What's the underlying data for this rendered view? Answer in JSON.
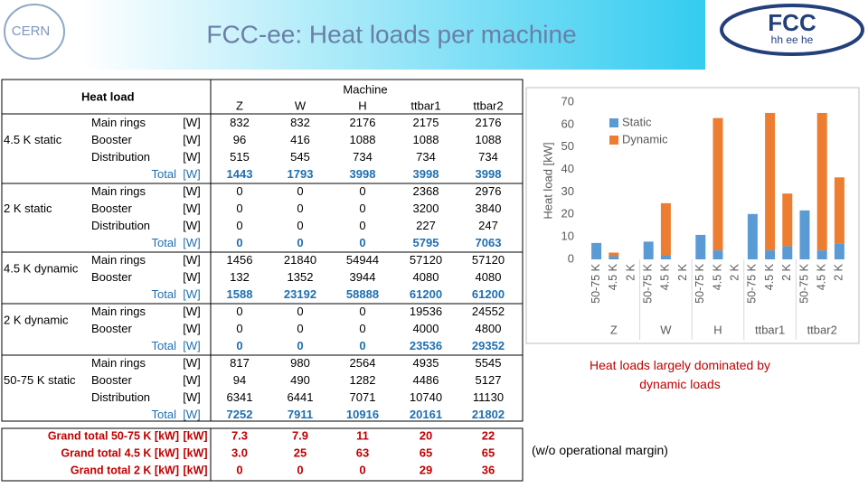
{
  "header": {
    "title": "FCC-ee: Heat loads per machine",
    "logo_left": "CERN",
    "logo_right": "FCC",
    "logo_right_sub": "hh ee he"
  },
  "table": {
    "corner": "Heat load",
    "group_header": "Machine",
    "columns": [
      "Z",
      "W",
      "H",
      "ttbar1",
      "ttbar2"
    ],
    "sections": [
      {
        "label": "4.5 K static",
        "rows": [
          {
            "item": "Main rings",
            "unit": "[W]",
            "values": [
              832,
              832,
              2176,
              2175,
              2176
            ]
          },
          {
            "item": "Booster",
            "unit": "[W]",
            "values": [
              96,
              416,
              1088,
              1088,
              1088
            ]
          },
          {
            "item": "Distribution",
            "unit": "[W]",
            "values": [
              515,
              545,
              734,
              734,
              734
            ]
          },
          {
            "item": "Total",
            "unit": "[W]",
            "values": [
              1443,
              1793,
              3998,
              3998,
              3998
            ]
          }
        ]
      },
      {
        "label": "2 K static",
        "rows": [
          {
            "item": "Main rings",
            "unit": "[W]",
            "values": [
              0,
              0,
              0,
              2368,
              2976
            ]
          },
          {
            "item": "Booster",
            "unit": "[W]",
            "values": [
              0,
              0,
              0,
              3200,
              3840
            ]
          },
          {
            "item": "Distribution",
            "unit": "[W]",
            "values": [
              0,
              0,
              0,
              227,
              247
            ]
          },
          {
            "item": "Total",
            "unit": "[W]",
            "values": [
              0,
              0,
              0,
              5795,
              7063
            ]
          }
        ]
      },
      {
        "label": "4.5 K dynamic",
        "rows": [
          {
            "item": "Main rings",
            "unit": "[W]",
            "values": [
              1456,
              21840,
              54944,
              57120,
              57120
            ]
          },
          {
            "item": "Booster",
            "unit": "[W]",
            "values": [
              132,
              1352,
              3944,
              4080,
              4080
            ]
          },
          {
            "item": "Total",
            "unit": "[W]",
            "values": [
              1588,
              23192,
              58888,
              61200,
              61200
            ]
          }
        ]
      },
      {
        "label": "2 K dynamic",
        "rows": [
          {
            "item": "Main rings",
            "unit": "[W]",
            "values": [
              0,
              0,
              0,
              19536,
              24552
            ]
          },
          {
            "item": "Booster",
            "unit": "[W]",
            "values": [
              0,
              0,
              0,
              4000,
              4800
            ]
          },
          {
            "item": "Total",
            "unit": "[W]",
            "values": [
              0,
              0,
              0,
              23536,
              29352
            ]
          }
        ]
      },
      {
        "label": "50-75 K static",
        "rows": [
          {
            "item": "Main rings",
            "unit": "[W]",
            "values": [
              817,
              980,
              2564,
              4935,
              5545
            ]
          },
          {
            "item": "Booster",
            "unit": "[W]",
            "values": [
              94,
              490,
              1282,
              4486,
              5127
            ]
          },
          {
            "item": "Distribution",
            "unit": "[W]",
            "values": [
              6341,
              6441,
              7071,
              10740,
              11130
            ]
          },
          {
            "item": "Total",
            "unit": "[W]",
            "values": [
              7252,
              7911,
              10916,
              20161,
              21802
            ]
          }
        ]
      }
    ]
  },
  "grand_totals": [
    {
      "label": "Grand total 50-75 K [kW]",
      "unit": "[kW]",
      "values": [
        "7.3",
        "7.9",
        "11",
        "20",
        "22"
      ]
    },
    {
      "label": "Grand total 4.5 K [kW]",
      "unit": "[kW]",
      "values": [
        "3.0",
        "25",
        "63",
        "65",
        "65"
      ]
    },
    {
      "label": "Grand total 2 K [kW]",
      "unit": "[kW]",
      "values": [
        "0",
        "0",
        "0",
        "29",
        "36"
      ]
    }
  ],
  "chart_data": {
    "type": "bar",
    "stacked": true,
    "categories": [
      "50-75 K",
      "4.5 K",
      "2 K",
      "50-75 K",
      "4.5 K",
      "2 K",
      "50-75 K",
      "4.5 K",
      "2 K",
      "50-75 K",
      "4.5 K",
      "2 K",
      "50-75 K",
      "4.5 K",
      "2 K"
    ],
    "groups": [
      "Z",
      "W",
      "H",
      "ttbar1",
      "ttbar2"
    ],
    "series": [
      {
        "name": "Static",
        "color": "#5b9bd5",
        "values": [
          7.3,
          1.4,
          0,
          7.9,
          1.8,
          0,
          10.9,
          4.0,
          0,
          20.2,
          4.0,
          5.8,
          21.8,
          4.0,
          7.1
        ]
      },
      {
        "name": "Dynamic",
        "color": "#ed7d31",
        "values": [
          0,
          1.6,
          0,
          0,
          23.2,
          0,
          0,
          58.9,
          0,
          0,
          61.2,
          23.5,
          0,
          61.2,
          29.4
        ]
      }
    ],
    "y_label": "Heat load [kW]",
    "ylim": [
      0,
      70
    ],
    "yticks": [
      0,
      10,
      20,
      30,
      40,
      50,
      60,
      70
    ],
    "legend": "upper left",
    "grid": false
  },
  "caption": "Heat loads largely dominated by dynamic loads",
  "note": "(w/o operational margin)"
}
